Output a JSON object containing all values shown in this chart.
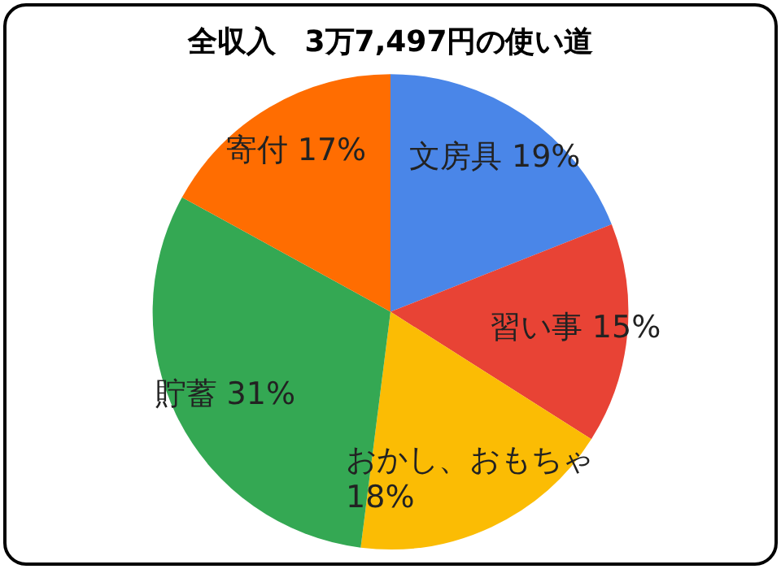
{
  "chart_data": {
    "type": "pie",
    "title": "全収入　3万7,497円の使い道",
    "categories": [
      "文房具",
      "習い事",
      "おかし、おもちゃ",
      "貯蓄",
      "寄付"
    ],
    "values": [
      19,
      15,
      18,
      31,
      17
    ],
    "colors": [
      "#4a86e8",
      "#e84335",
      "#fbbc04",
      "#34a853",
      "#ff6d01"
    ],
    "value_labels": [
      "19%",
      "15%",
      "18%",
      "31%",
      "17%"
    ],
    "legend": false
  }
}
